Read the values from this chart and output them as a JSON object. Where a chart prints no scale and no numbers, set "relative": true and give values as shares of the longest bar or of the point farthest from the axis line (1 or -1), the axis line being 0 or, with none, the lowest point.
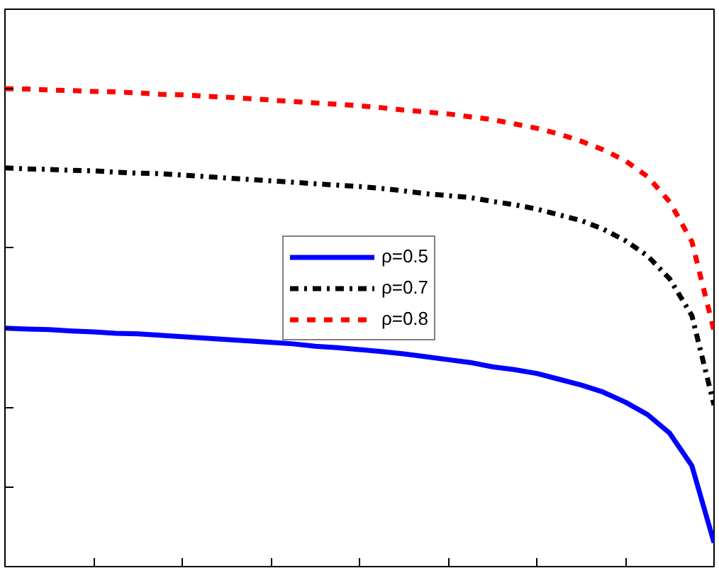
{
  "chart_data": {
    "type": "line",
    "relative": true,
    "legend": "center",
    "grid": false,
    "categories": [
      null,
      null,
      null,
      null,
      null,
      null,
      null,
      null,
      null,
      null,
      null,
      null,
      null,
      null,
      null,
      null,
      null,
      null,
      null,
      null,
      null,
      null,
      null,
      null,
      null,
      null,
      null,
      null,
      null,
      null,
      null,
      null,
      null
    ],
    "series": [
      {
        "name": "ρ=0.5",
        "color": "#0000ff",
        "line_style": "solid",
        "values": [
          0.499,
          0.497,
          0.496,
          0.493,
          0.491,
          0.488,
          0.487,
          0.484,
          0.481,
          0.478,
          0.475,
          0.472,
          0.469,
          0.466,
          0.461,
          0.458,
          0.454,
          0.45,
          0.445,
          0.439,
          0.433,
          0.427,
          0.418,
          0.412,
          0.404,
          0.392,
          0.38,
          0.365,
          0.344,
          0.318,
          0.279,
          0.211,
          0.05
        ]
      },
      {
        "name": "ρ=0.7",
        "color": "#000000",
        "line_style": "dashdot",
        "values": [
          0.834,
          0.832,
          0.831,
          0.829,
          0.828,
          0.825,
          0.823,
          0.822,
          0.819,
          0.816,
          0.813,
          0.81,
          0.807,
          0.804,
          0.801,
          0.798,
          0.795,
          0.791,
          0.786,
          0.78,
          0.776,
          0.772,
          0.764,
          0.757,
          0.748,
          0.736,
          0.724,
          0.706,
          0.682,
          0.65,
          0.602,
          0.525,
          0.338
        ]
      },
      {
        "name": "ρ=0.8",
        "color": "#ff0000",
        "line_style": "dashed",
        "values": [
          1.0,
          0.999,
          0.997,
          0.996,
          0.994,
          0.993,
          0.991,
          0.988,
          0.987,
          0.984,
          0.982,
          0.979,
          0.976,
          0.973,
          0.97,
          0.967,
          0.964,
          0.96,
          0.955,
          0.951,
          0.947,
          0.941,
          0.935,
          0.926,
          0.917,
          0.905,
          0.89,
          0.872,
          0.849,
          0.816,
          0.763,
          0.68,
          0.493
        ]
      }
    ]
  }
}
